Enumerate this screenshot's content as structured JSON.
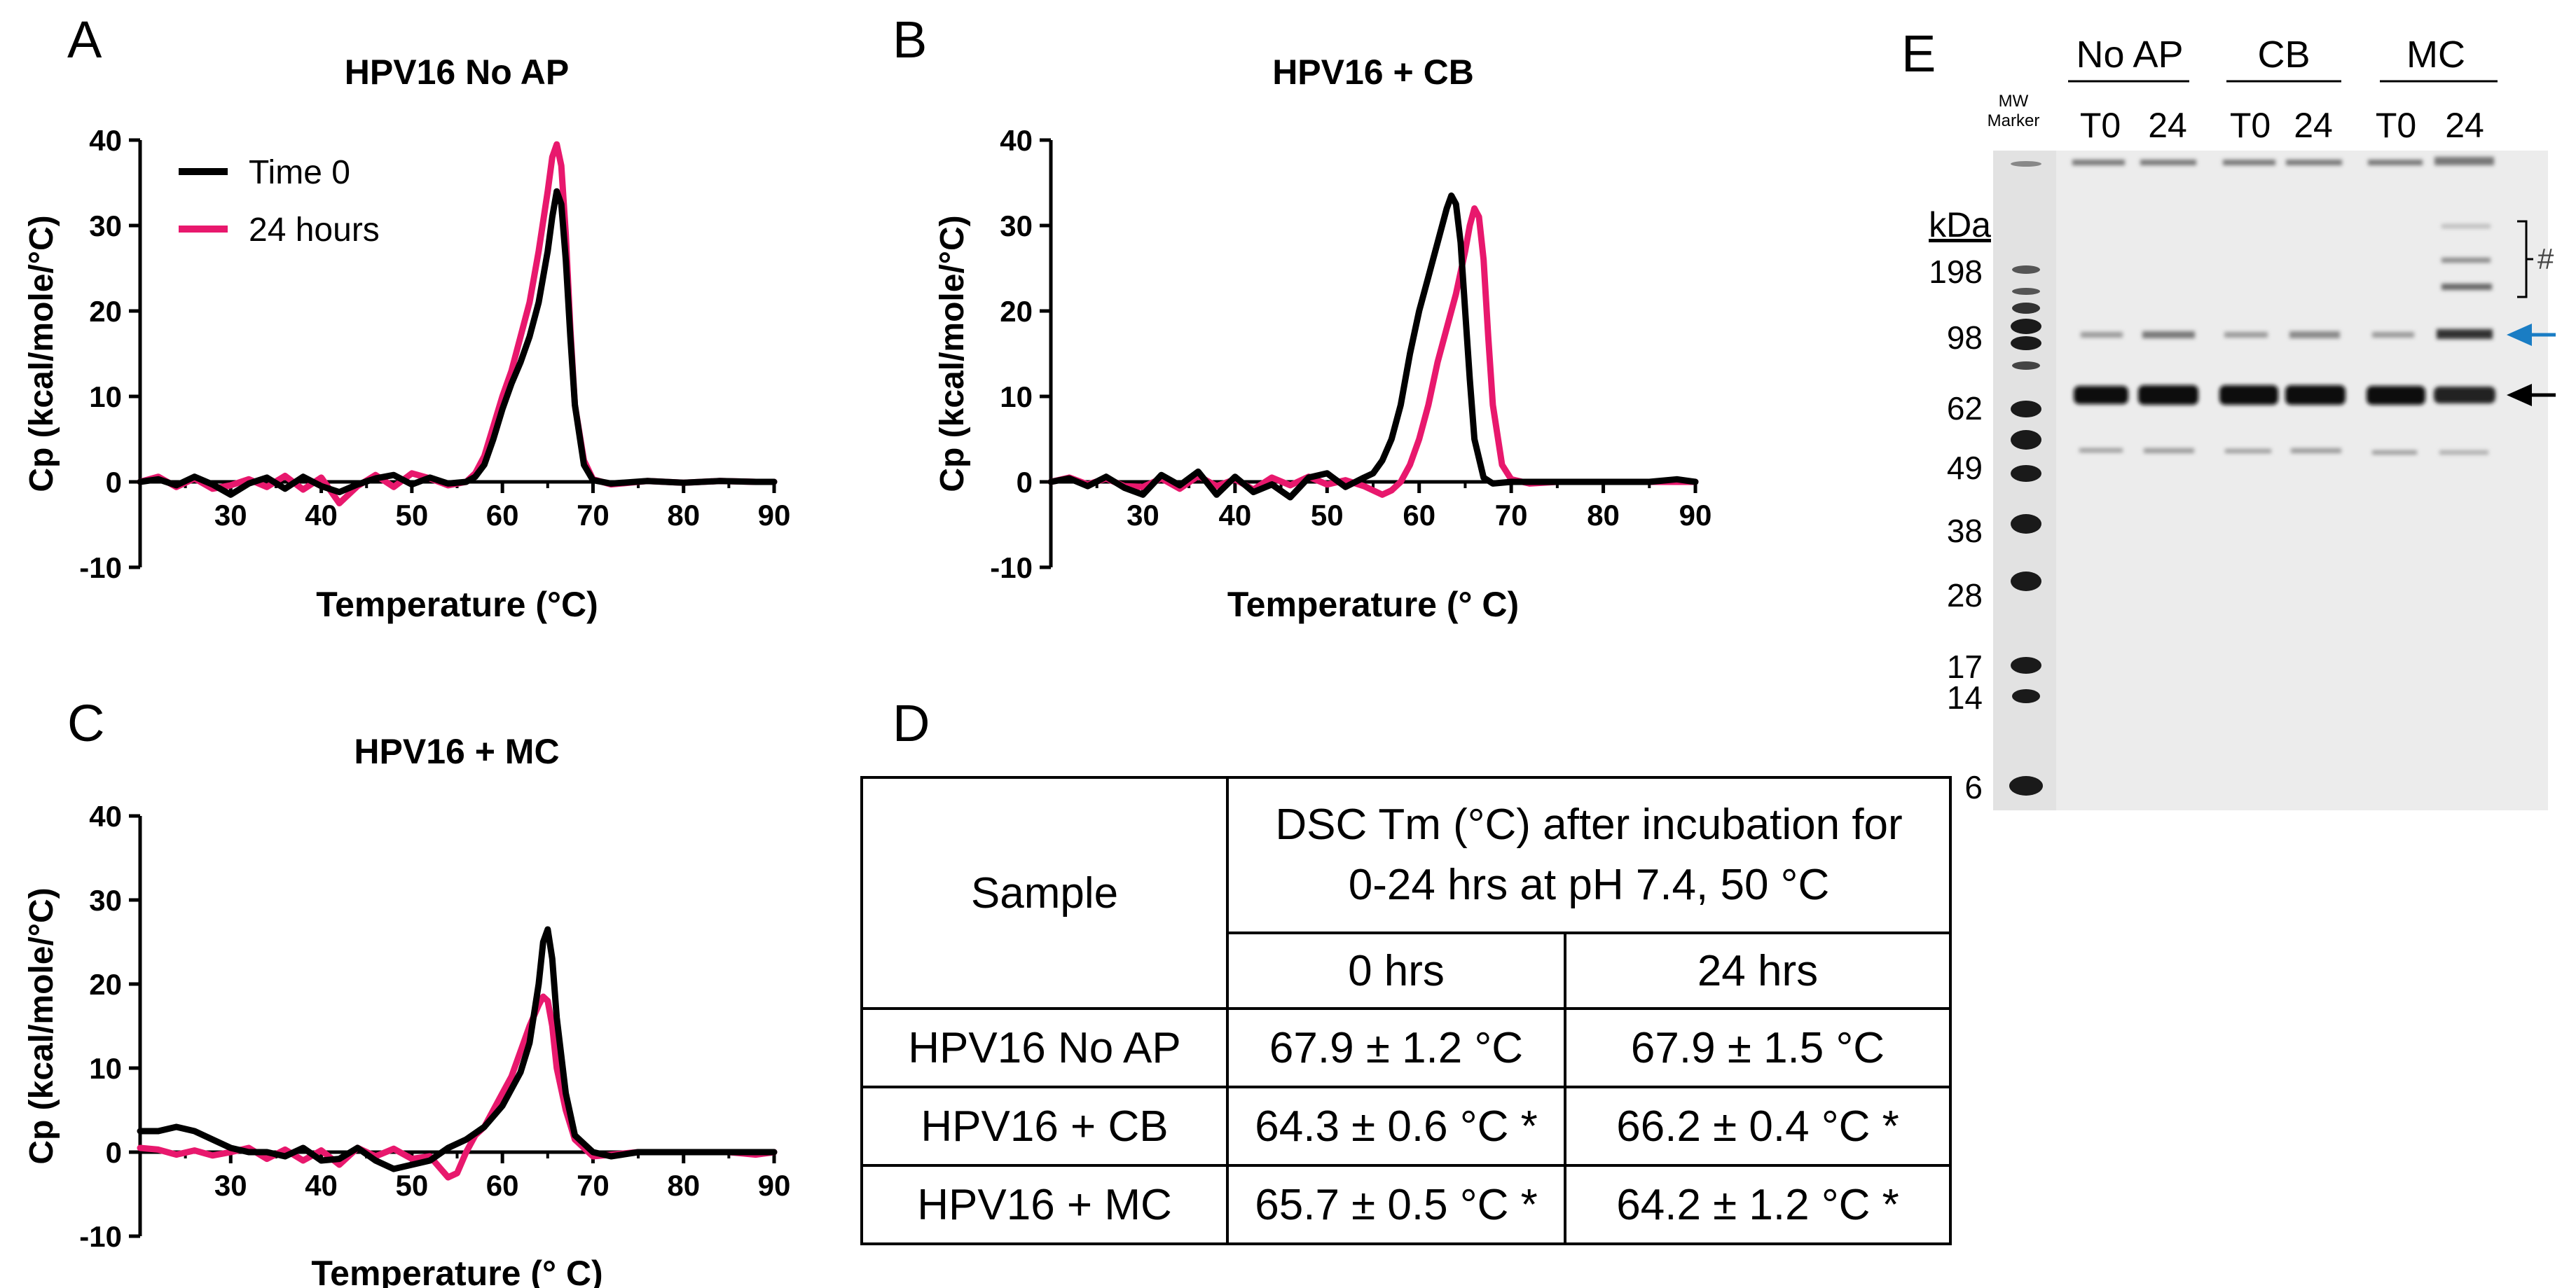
{
  "panel_labels": {
    "a": "A",
    "b": "B",
    "c": "C",
    "d": "D",
    "e": "E"
  },
  "colors": {
    "time0": "#000000",
    "hours24": "#e8186d",
    "blue_arrow": "#1a7dc4"
  },
  "chart_data": [
    {
      "type": "line",
      "title": "HPV16 No AP",
      "xlabel": "Temperature (°C)",
      "ylabel": "Cp (kcal/mole/°C)",
      "xlim": [
        20,
        90
      ],
      "ylim": [
        -10,
        40
      ],
      "xticks": [
        "30",
        "40",
        "50",
        "60",
        "70",
        "80",
        "90"
      ],
      "yticks": [
        "-10",
        "0",
        "10",
        "20",
        "30",
        "40"
      ],
      "legend": "top-left",
      "series": [
        {
          "name": "Time 0",
          "color": "#000000",
          "x": [
            20,
            22,
            24,
            26,
            28,
            30,
            32,
            34,
            36,
            38,
            40,
            42,
            44,
            46,
            48,
            50,
            52,
            54,
            56,
            57,
            58,
            59,
            60,
            61,
            62,
            63,
            64,
            65,
            65.5,
            66,
            66.5,
            67,
            67.5,
            68,
            69,
            70,
            72,
            76,
            80,
            84,
            88,
            90
          ],
          "y": [
            0,
            0.3,
            -0.4,
            0.6,
            -0.3,
            -1.5,
            -0.2,
            0.5,
            -0.8,
            0.6,
            -0.5,
            -1.2,
            -0.3,
            0.4,
            0.8,
            -0.3,
            0.5,
            -0.2,
            0,
            0.6,
            2,
            5,
            8.5,
            11.5,
            14,
            17,
            21,
            27,
            31,
            34,
            32.5,
            26,
            17,
            9,
            2,
            0.2,
            -0.2,
            0.1,
            -0.1,
            0.1,
            0,
            0
          ]
        },
        {
          "name": "24 hours",
          "color": "#e8186d",
          "x": [
            20,
            22,
            24,
            26,
            28,
            30,
            32,
            34,
            36,
            38,
            40,
            42,
            44,
            46,
            48,
            50,
            52,
            54,
            56,
            57,
            58,
            59,
            60,
            61,
            62,
            63,
            64,
            65,
            65.5,
            66,
            66.5,
            67,
            67.5,
            68,
            69,
            70,
            72,
            76,
            80,
            84,
            88,
            90
          ],
          "y": [
            0,
            0.6,
            -0.6,
            0.4,
            -0.8,
            -0.4,
            0.3,
            -0.6,
            0.7,
            -0.9,
            0.5,
            -2.5,
            -0.5,
            0.8,
            -0.6,
            1,
            0.4,
            -0.4,
            0,
            1,
            3,
            6.5,
            10,
            13,
            17,
            21,
            27,
            34,
            38,
            39.5,
            37,
            29,
            18,
            9,
            2.5,
            0.3,
            -0.3,
            0.1,
            -0.1,
            0.1,
            0,
            0
          ]
        }
      ]
    },
    {
      "type": "line",
      "title": "HPV16 + CB",
      "xlabel": "Temperature (° C)",
      "ylabel": "Cp (kcal/mole/°C)",
      "xlim": [
        20,
        90
      ],
      "ylim": [
        -10,
        40
      ],
      "xticks": [
        "30",
        "40",
        "50",
        "60",
        "70",
        "80",
        "90"
      ],
      "yticks": [
        "-10",
        "0",
        "10",
        "20",
        "30",
        "40"
      ],
      "series": [
        {
          "name": "Time 0",
          "color": "#000000",
          "x": [
            20,
            22,
            24,
            26,
            28,
            30,
            32,
            34,
            36,
            38,
            40,
            42,
            44,
            46,
            48,
            50,
            52,
            54,
            55,
            56,
            57,
            58,
            59,
            60,
            61,
            62,
            63,
            63.5,
            64,
            64.5,
            65,
            65.5,
            66,
            67,
            68,
            70,
            75,
            80,
            85,
            88,
            90
          ],
          "y": [
            0,
            0.4,
            -0.5,
            0.6,
            -0.7,
            -1.5,
            0.8,
            -0.4,
            1.2,
            -1.5,
            0.6,
            -1.2,
            -0.3,
            -1.8,
            0.5,
            1,
            -0.6,
            0.5,
            1,
            2.5,
            5,
            9,
            15,
            20,
            24,
            28,
            32,
            33.5,
            32.5,
            28,
            20,
            12,
            5,
            0.5,
            -0.2,
            0,
            0,
            0,
            0,
            0.3,
            0
          ]
        },
        {
          "name": "24 hours",
          "color": "#e8186d",
          "x": [
            20,
            22,
            24,
            26,
            28,
            30,
            32,
            34,
            36,
            38,
            40,
            42,
            44,
            46,
            48,
            50,
            52,
            54,
            56,
            57,
            58,
            59,
            60,
            61,
            62,
            63,
            64,
            65,
            65.5,
            66,
            66.5,
            67,
            67.5,
            68,
            69,
            70,
            72,
            75,
            80,
            85,
            90
          ],
          "y": [
            0,
            0.5,
            -0.3,
            0.4,
            -0.5,
            -0.6,
            0.4,
            -0.8,
            0.7,
            -0.5,
            0.3,
            -0.9,
            0.5,
            -0.4,
            0.6,
            -0.3,
            0.2,
            -0.5,
            -1.5,
            -1,
            0,
            2,
            5,
            9,
            14,
            18,
            22,
            27,
            30,
            32,
            31,
            26,
            17,
            9,
            2,
            0.3,
            -0.2,
            0,
            0,
            0,
            0
          ]
        }
      ]
    },
    {
      "type": "line",
      "title": "HPV16 + MC",
      "xlabel": "Temperature (° C)",
      "ylabel": "Cp (kcal/mole/°C)",
      "xlim": [
        20,
        90
      ],
      "ylim": [
        -10,
        40
      ],
      "xticks": [
        "30",
        "40",
        "50",
        "60",
        "70",
        "80",
        "90"
      ],
      "yticks": [
        "-10",
        "0",
        "10",
        "20",
        "30",
        "40"
      ],
      "series": [
        {
          "name": "Time 0",
          "color": "#000000",
          "x": [
            20,
            22,
            24,
            26,
            28,
            30,
            32,
            34,
            36,
            38,
            40,
            42,
            44,
            46,
            48,
            50,
            52,
            54,
            56,
            58,
            60,
            62,
            63,
            64,
            64.5,
            65,
            65.5,
            66,
            67,
            68,
            70,
            72,
            75,
            80,
            85,
            90
          ],
          "y": [
            2.5,
            2.5,
            3,
            2.5,
            1.5,
            0.5,
            0,
            0,
            -0.5,
            0.5,
            -1,
            -0.8,
            0.5,
            -1,
            -2,
            -1.5,
            -1,
            0.5,
            1.5,
            3,
            5.5,
            9.5,
            13,
            20,
            25,
            26.5,
            23,
            16,
            7,
            2,
            0,
            -0.5,
            0,
            0,
            0,
            0
          ]
        },
        {
          "name": "24 hours",
          "color": "#e8186d",
          "x": [
            20,
            22,
            24,
            26,
            28,
            30,
            32,
            34,
            36,
            38,
            40,
            42,
            44,
            46,
            48,
            50,
            52,
            54,
            55,
            56,
            57,
            58,
            59,
            60,
            61,
            62,
            63,
            64,
            64.5,
            65,
            65.5,
            66,
            67,
            68,
            69,
            70,
            72,
            75,
            80,
            85,
            88,
            90
          ],
          "y": [
            0.5,
            0.3,
            -0.3,
            0.2,
            -0.4,
            0,
            0.5,
            -0.8,
            0.3,
            -1,
            0.2,
            -1.5,
            0.5,
            -0.5,
            0.4,
            -0.8,
            -0.5,
            -3,
            -2.5,
            0,
            2,
            3,
            5,
            7,
            9,
            12,
            15,
            17.5,
            18.5,
            18,
            15,
            10,
            5,
            1.5,
            0.5,
            -0.5,
            -0.3,
            0,
            0,
            0,
            -0.3,
            0
          ]
        }
      ]
    }
  ],
  "legend": {
    "time0": "Time 0",
    "hours24": "24 hours"
  },
  "table": {
    "header_sample": "Sample",
    "header_dsc_line1": "DSC Tm (°C) after incubation for",
    "header_dsc_line2": "0-24 hrs at pH 7.4, 50 °C",
    "col_0hrs": "0 hrs",
    "col_24hrs": "24 hrs",
    "rows": [
      {
        "sample": "HPV16 No AP",
        "t0": "67.9 ± 1.2 °C",
        "t24": "67.9 ± 1.5 °C"
      },
      {
        "sample": "HPV16 + CB",
        "t0": "64.3 ± 0.6 °C *",
        "t24": "66.2 ± 0.4 °C *"
      },
      {
        "sample": "HPV16 + MC",
        "t0": "65.7 ± 0.5 °C *",
        "t24": "64.2 ± 1.2 °C *"
      }
    ]
  },
  "gel": {
    "group_labels": [
      "No AP",
      "CB",
      "MC"
    ],
    "lane_labels": [
      "T0",
      "24",
      "T0",
      "24",
      "T0",
      "24"
    ],
    "marker_label_line1": "MW",
    "marker_label_line2": "Marker",
    "unit_label": "kDa",
    "mw_labels": [
      "198",
      "98",
      "62",
      "49",
      "38",
      "28",
      "17",
      "14",
      "6"
    ],
    "hash_label": "#"
  }
}
